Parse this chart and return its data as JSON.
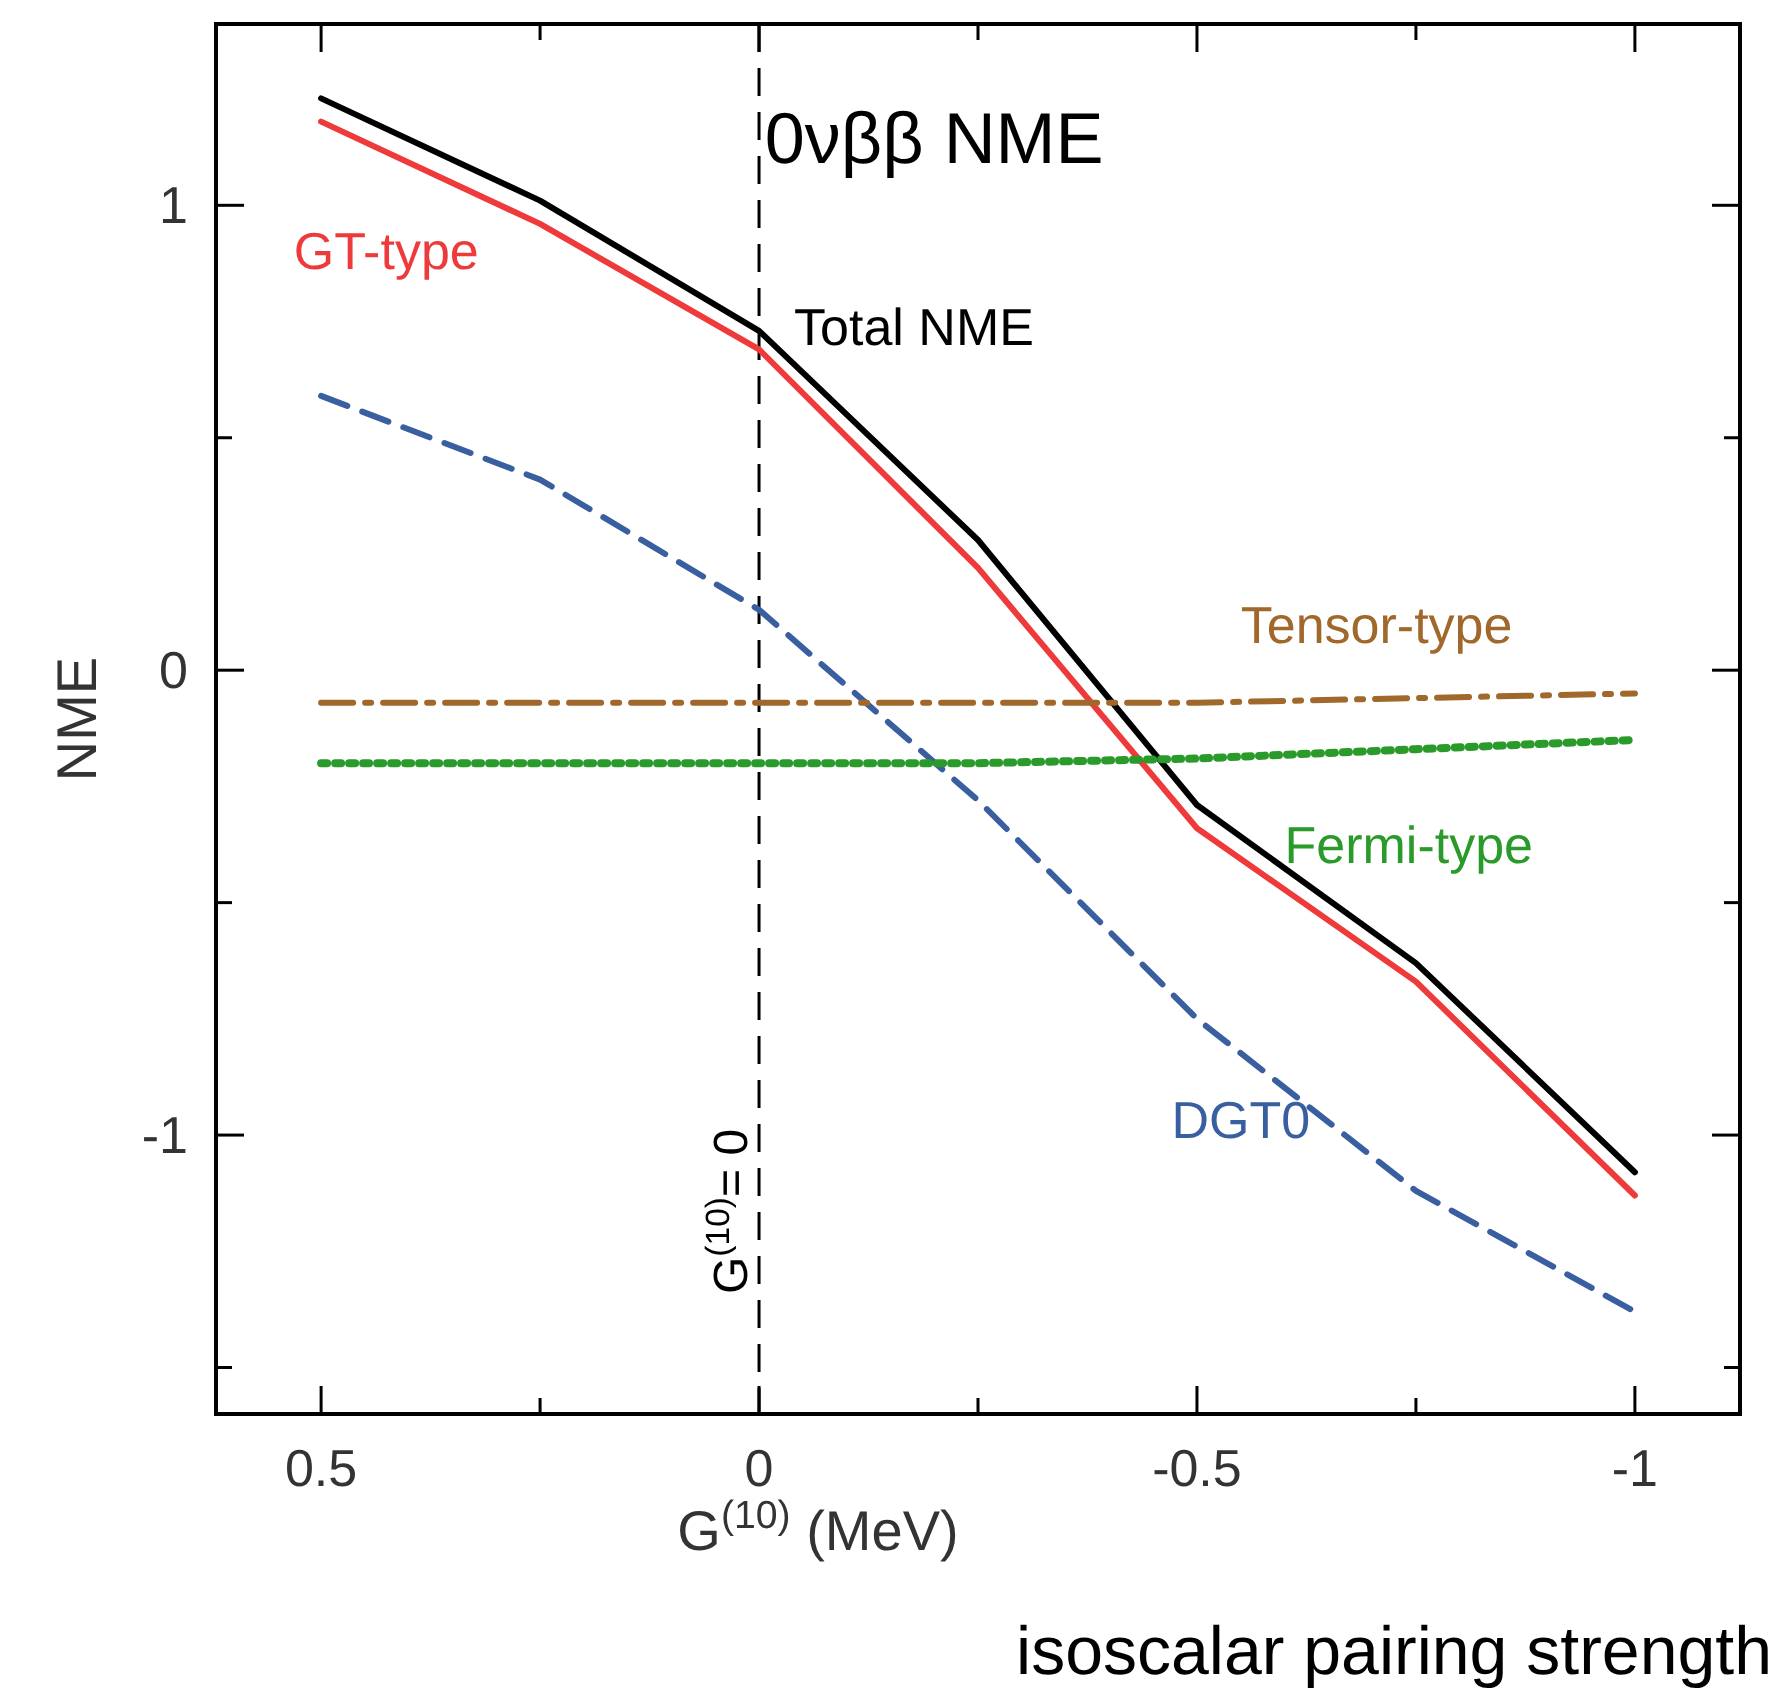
{
  "chart_data": {
    "type": "line",
    "title": "0νββ NME",
    "xlabel": "G$^{(10)}$ (MeV)",
    "ylabel": "NME",
    "x": [
      0.5,
      0.25,
      0,
      -0.25,
      -0.5,
      -0.75,
      -1
    ],
    "xlim": [
      0.62,
      -1.12
    ],
    "xticks": [
      0.5,
      {
        "value": 0.25,
        "label": null
      },
      0,
      {
        "value": -0.25,
        "label": null
      },
      -0.5,
      {
        "value": -0.75,
        "label": null
      },
      -1
    ],
    "ylim": [
      -1.6,
      1.39
    ],
    "yticks": [
      {
        "value": -1.5,
        "label": null
      },
      -1,
      {
        "value": -0.5,
        "label": null
      },
      0,
      {
        "value": 0.5,
        "label": null
      },
      1
    ],
    "series": [
      {
        "name": "Total NME",
        "color": "#000000",
        "line_style": "solid",
        "values": [
          1.23,
          1.01,
          0.73,
          0.28,
          -0.29,
          -0.63,
          -1.08
        ]
      },
      {
        "name": "GT-type",
        "color": "#ee3a3a",
        "line_style": "solid",
        "values": [
          1.18,
          0.96,
          0.69,
          0.22,
          -0.34,
          -0.67,
          -1.13
        ]
      },
      {
        "name": "DGT0",
        "color": "#3a5fa0",
        "line_style": "dashed",
        "values": [
          0.59,
          0.41,
          0.13,
          -0.28,
          -0.75,
          -1.12,
          -1.38
        ]
      },
      {
        "name": "Tensor-type",
        "color": "#a0682a",
        "line_style": "dashed",
        "values": [
          -0.07,
          -0.07,
          -0.07,
          -0.07,
          -0.07,
          -0.06,
          -0.05
        ]
      },
      {
        "name": "Fermi-type",
        "color": "#2a9a2a",
        "line_style": "dotted",
        "values": [
          -0.2,
          -0.2,
          -0.2,
          -0.2,
          -0.19,
          -0.17,
          -0.15
        ]
      }
    ],
    "ref_lines": [
      {
        "axis": "x",
        "value": 0,
        "label": "G$^{(10)}$= 0",
        "line_style": "dashed",
        "color": "#000000"
      }
    ],
    "annotations": [
      "isoscalar pairing strength"
    ],
    "marker": "none"
  }
}
